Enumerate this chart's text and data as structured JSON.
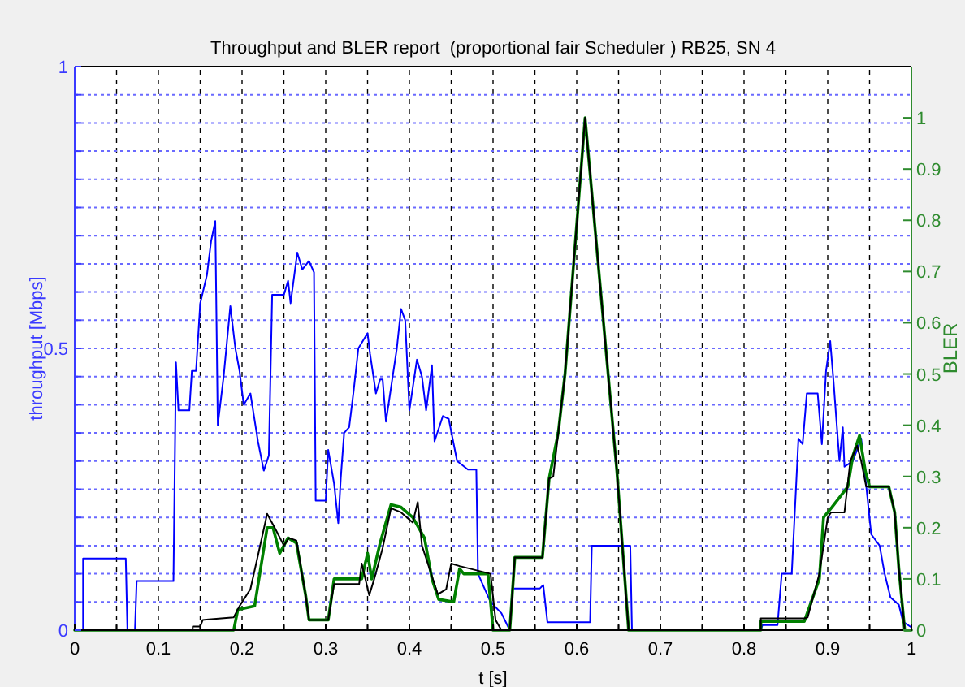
{
  "chart_data": {
    "type": "line",
    "title": "Throughput and BLER report  (proportional fair Scheduler ) RB25, SN 4",
    "xlabel": "t [s]",
    "ylabel": "throughput [Mbps]",
    "y2label": "BLER",
    "xlim": [
      0,
      1
    ],
    "ylim": [
      0,
      1
    ],
    "y2lim": [
      0,
      1.1
    ],
    "xticks": [
      0,
      {
        "value": 0.05,
        "label": null
      },
      0.1,
      {
        "value": 0.15,
        "label": null
      },
      0.2,
      {
        "value": 0.25,
        "label": null
      },
      0.3,
      {
        "value": 0.35,
        "label": null
      },
      0.4,
      {
        "value": 0.45,
        "label": null
      },
      0.5,
      {
        "value": 0.55,
        "label": null
      },
      0.6,
      {
        "value": 0.65,
        "label": null
      },
      0.7,
      {
        "value": 0.75,
        "label": null
      },
      0.8,
      {
        "value": 0.85,
        "label": null
      },
      0.9,
      {
        "value": 0.95,
        "label": null
      },
      1
    ],
    "yticks": [
      0,
      {
        "value": 0.05,
        "label": null
      },
      {
        "value": 0.1,
        "label": null
      },
      {
        "value": 0.15,
        "label": null
      },
      {
        "value": 0.2,
        "label": null
      },
      {
        "value": 0.25,
        "label": null
      },
      {
        "value": 0.3,
        "label": null
      },
      {
        "value": 0.35,
        "label": null
      },
      {
        "value": 0.4,
        "label": null
      },
      {
        "value": 0.45,
        "label": null
      },
      0.5,
      {
        "value": 0.55,
        "label": null
      },
      {
        "value": 0.6,
        "label": null
      },
      {
        "value": 0.65,
        "label": null
      },
      {
        "value": 0.7,
        "label": null
      },
      {
        "value": 0.75,
        "label": null
      },
      {
        "value": 0.8,
        "label": null
      },
      {
        "value": 0.85,
        "label": null
      },
      {
        "value": 0.9,
        "label": null
      },
      {
        "value": 0.95,
        "label": null
      },
      1
    ],
    "y2ticks": [
      0,
      0.1,
      0.2,
      0.3,
      0.4,
      0.5,
      0.6,
      0.7,
      0.8,
      0.9,
      1
    ],
    "grid": true,
    "series": [
      {
        "color": "#0000ff",
        "x": [
          0,
          0.01,
          0.01,
          0.061,
          0.063,
          0.072,
          0.074,
          0.118,
          0.121,
          0.124,
          0.137,
          0.14,
          0.145,
          0.15,
          0.158,
          0.163,
          0.168,
          0.171,
          0.178,
          0.186,
          0.192,
          0.197,
          0.202,
          0.21,
          0.219,
          0.226,
          0.232,
          0.236,
          0.25,
          0.255,
          0.258,
          0.266,
          0.272,
          0.28,
          0.286,
          0.288,
          0.3,
          0.303,
          0.31,
          0.315,
          0.318,
          0.322,
          0.328,
          0.333,
          0.339,
          0.35,
          0.353,
          0.36,
          0.365,
          0.368,
          0.372,
          0.378,
          0.385,
          0.39,
          0.395,
          0.4,
          0.409,
          0.415,
          0.42,
          0.427,
          0.43,
          0.44,
          0.447,
          0.457,
          0.47,
          0.48,
          0.482,
          0.497,
          0.51,
          0.52,
          0.523,
          0.556,
          0.56,
          0.565,
          0.616,
          0.618,
          0.664,
          0.666,
          0.82,
          0.822,
          0.84,
          0.845,
          0.857,
          0.865,
          0.87,
          0.875,
          0.888,
          0.893,
          0.898,
          0.903,
          0.907,
          0.914,
          0.918,
          0.92,
          0.93,
          0.94,
          0.946,
          0.952,
          0.962,
          0.968,
          0.975,
          0.985,
          0.99,
          1
        ],
        "values": [
          0,
          0,
          0.127,
          0.127,
          0,
          0,
          0.087,
          0.087,
          0.475,
          0.39,
          0.39,
          0.46,
          0.46,
          0.58,
          0.63,
          0.69,
          0.726,
          0.364,
          0.45,
          0.575,
          0.5,
          0.46,
          0.4,
          0.42,
          0.335,
          0.283,
          0.31,
          0.595,
          0.595,
          0.62,
          0.58,
          0.67,
          0.64,
          0.655,
          0.635,
          0.23,
          0.23,
          0.32,
          0.26,
          0.19,
          0.27,
          0.35,
          0.36,
          0.42,
          0.5,
          0.527,
          0.49,
          0.42,
          0.445,
          0.445,
          0.37,
          0.43,
          0.5,
          0.57,
          0.55,
          0.39,
          0.48,
          0.45,
          0.39,
          0.47,
          0.335,
          0.38,
          0.375,
          0.3,
          0.285,
          0.285,
          0.1,
          0.05,
          0.03,
          0,
          0.074,
          0.074,
          0.08,
          0.014,
          0.014,
          0.15,
          0.15,
          0,
          0,
          0.009,
          0.009,
          0.1,
          0.1,
          0.34,
          0.33,
          0.42,
          0.42,
          0.33,
          0.46,
          0.513,
          0.44,
          0.3,
          0.36,
          0.29,
          0.3,
          0.34,
          0.256,
          0.17,
          0.15,
          0.1,
          0.058,
          0.045,
          0.015,
          0.005
        ]
      },
      {
        "color": "#008000",
        "axis": "y2",
        "x": [
          0,
          0.19,
          0.195,
          0.215,
          0.23,
          0.237,
          0.245,
          0.255,
          0.265,
          0.276,
          0.28,
          0.303,
          0.31,
          0.343,
          0.35,
          0.355,
          0.365,
          0.378,
          0.39,
          0.404,
          0.418,
          0.427,
          0.435,
          0.453,
          0.46,
          0.465,
          0.494,
          0.5,
          0.52,
          0.526,
          0.559,
          0.567,
          0.578,
          0.586,
          0.61,
          0.632,
          0.648,
          0.662,
          0.82,
          0.82,
          0.872,
          0.89,
          0.895,
          0.905,
          0.924,
          0.93,
          0.938,
          0.945,
          0.95,
          0.973,
          0.98,
          0.985,
          0.992,
          1
        ],
        "values": [
          0,
          0,
          0.04,
          0.047,
          0.2,
          0.2,
          0.15,
          0.18,
          0.17,
          0.068,
          0.02,
          0.02,
          0.1,
          0.1,
          0.15,
          0.1,
          0.17,
          0.245,
          0.24,
          0.22,
          0.18,
          0.1,
          0.06,
          0.055,
          0.12,
          0.11,
          0.11,
          0,
          0,
          0.142,
          0.142,
          0.296,
          0.386,
          0.5,
          1,
          0.6,
          0.31,
          0,
          0,
          0.017,
          0.017,
          0.1,
          0.22,
          0.24,
          0.28,
          0.34,
          0.38,
          0.31,
          0.28,
          0.28,
          0.23,
          0.12,
          0,
          0
        ]
      },
      {
        "color": "#000000",
        "axis": "y2",
        "x": [
          0,
          0.141,
          0.141,
          0.15,
          0.153,
          0.19,
          0.197,
          0.21,
          0.22,
          0.23,
          0.24,
          0.25,
          0.256,
          0.265,
          0.276,
          0.28,
          0.303,
          0.31,
          0.34,
          0.343,
          0.352,
          0.358,
          0.368,
          0.378,
          0.39,
          0.404,
          0.41,
          0.415,
          0.424,
          0.434,
          0.444,
          0.45,
          0.46,
          0.497,
          0.503,
          0.51,
          0.52,
          0.526,
          0.559,
          0.567,
          0.572,
          0.578,
          0.586,
          0.61,
          0.632,
          0.648,
          0.662,
          0.82,
          0.82,
          0.872,
          0.876,
          0.89,
          0.9,
          0.904,
          0.92,
          0.927,
          0.935,
          0.94,
          0.946,
          0.973,
          0.98,
          0.985,
          0.992,
          1
        ],
        "values": [
          0,
          0,
          0.007,
          0.007,
          0.02,
          0.025,
          0.047,
          0.08,
          0.153,
          0.227,
          0.197,
          0.165,
          0.18,
          0.175,
          0.068,
          0.02,
          0.02,
          0.09,
          0.09,
          0.13,
          0.068,
          0.1,
          0.16,
          0.238,
          0.23,
          0.21,
          0.25,
          0.165,
          0.12,
          0.07,
          0.08,
          0.13,
          0.125,
          0.11,
          0.02,
          0,
          0,
          0.142,
          0.142,
          0.296,
          0.3,
          0.386,
          0.5,
          1,
          0.6,
          0.31,
          0,
          0,
          0.023,
          0.023,
          0.025,
          0.11,
          0.22,
          0.23,
          0.23,
          0.33,
          0.36,
          0.33,
          0.28,
          0.28,
          0.23,
          0.12,
          0,
          0
        ]
      }
    ]
  }
}
